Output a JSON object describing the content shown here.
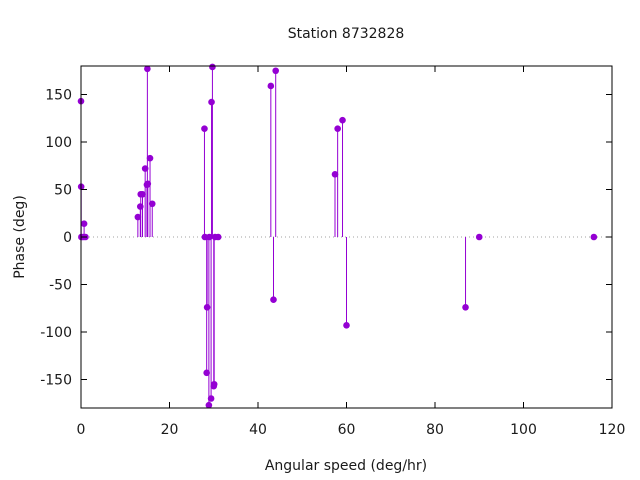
{
  "chart_data": {
    "type": "stem",
    "title": "Station 8732828",
    "xlabel": "Angular speed (deg/hr)",
    "ylabel": "Phase (deg)",
    "xlim": [
      0,
      120
    ],
    "ylim": [
      -180,
      180
    ],
    "xticks": [
      0,
      20,
      40,
      60,
      80,
      100,
      120
    ],
    "yticks": [
      -150,
      -100,
      -50,
      0,
      50,
      100,
      150
    ],
    "zero_line": true,
    "grid": false,
    "legend": "none",
    "color": "#9400d3",
    "points": [
      {
        "x": 0.0,
        "y": 143
      },
      {
        "x": 0.04,
        "y": 53
      },
      {
        "x": 0.08,
        "y": 0
      },
      {
        "x": 0.5,
        "y": 0
      },
      {
        "x": 0.7,
        "y": 14
      },
      {
        "x": 1.0,
        "y": 0
      },
      {
        "x": 12.85,
        "y": 21
      },
      {
        "x": 13.4,
        "y": 32
      },
      {
        "x": 13.5,
        "y": 45
      },
      {
        "x": 13.9,
        "y": 45
      },
      {
        "x": 14.5,
        "y": 72
      },
      {
        "x": 14.9,
        "y": 55
      },
      {
        "x": 15.0,
        "y": 177
      },
      {
        "x": 15.1,
        "y": 56
      },
      {
        "x": 15.6,
        "y": 83
      },
      {
        "x": 16.1,
        "y": 35
      },
      {
        "x": 27.9,
        "y": 114
      },
      {
        "x": 28.0,
        "y": 0
      },
      {
        "x": 28.4,
        "y": -143
      },
      {
        "x": 28.5,
        "y": -74
      },
      {
        "x": 28.9,
        "y": -177
      },
      {
        "x": 29.0,
        "y": 0
      },
      {
        "x": 29.4,
        "y": -170
      },
      {
        "x": 29.5,
        "y": 142
      },
      {
        "x": 29.7,
        "y": 179
      },
      {
        "x": 30.0,
        "y": -157
      },
      {
        "x": 30.1,
        "y": -155
      },
      {
        "x": 30.3,
        "y": 0
      },
      {
        "x": 31.0,
        "y": 0
      },
      {
        "x": 42.9,
        "y": 159
      },
      {
        "x": 43.5,
        "y": -66
      },
      {
        "x": 44.0,
        "y": 175
      },
      {
        "x": 57.4,
        "y": 66
      },
      {
        "x": 58.0,
        "y": 114
      },
      {
        "x": 59.1,
        "y": 123
      },
      {
        "x": 60.0,
        "y": -93
      },
      {
        "x": 86.9,
        "y": -74
      },
      {
        "x": 90.0,
        "y": 0
      },
      {
        "x": 115.9,
        "y": 0
      }
    ]
  }
}
